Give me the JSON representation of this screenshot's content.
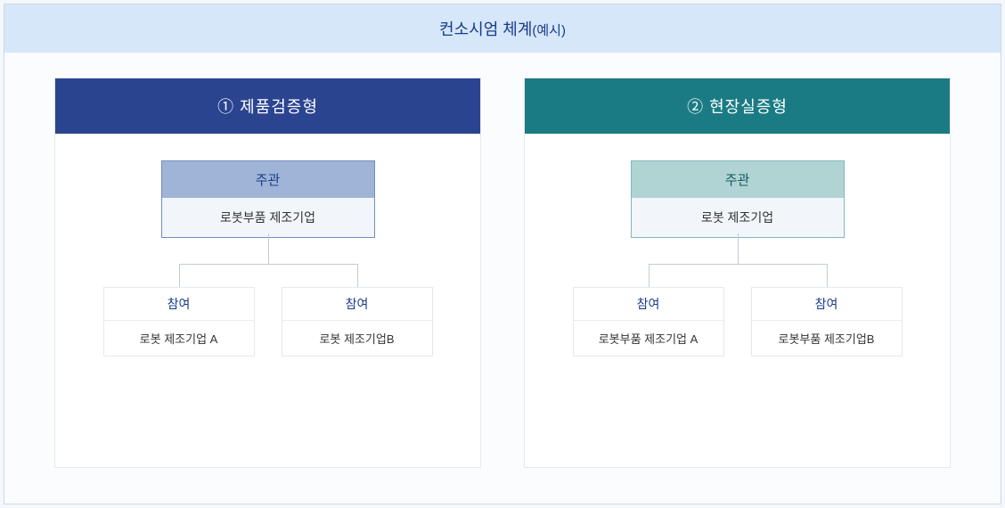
{
  "title_main": "컨소시엄 체계",
  "title_paren": "(예시)",
  "colors": {
    "title_bg": "#d5e7f9",
    "title_text": "#1a3b8a",
    "frame_bg": "#fbfcfd",
    "frame_border": "#cfd8e3",
    "panel_bg": "#ffffff",
    "panel_border": "#e3e9f0",
    "connector": "#c3cbd6",
    "child_head_text": "#1a3b8a",
    "main_desc_bg": "#f2f6fb"
  },
  "panels": [
    {
      "id": "product",
      "header": "① 제품검증형",
      "header_bg": "#2a4490",
      "main_head": "주관",
      "main_head_bg": "#9fb4d6",
      "main_head_text": "#1a3b8a",
      "main_border": "#6f8cc0",
      "main_desc": "로봇부품 제조기업",
      "children": [
        {
          "head": "참여",
          "desc": "로봇 제조기업 A"
        },
        {
          "head": "참여",
          "desc": "로봇 제조기업B"
        }
      ]
    },
    {
      "id": "field",
      "header": "② 현장실증형",
      "header_bg": "#1b7b85",
      "main_head": "주관",
      "main_head_bg": "#b0d3d4",
      "main_head_text": "#0f5a60",
      "main_border": "#7fb8ba",
      "main_desc": "로봇 제조기업",
      "children": [
        {
          "head": "참여",
          "desc": "로봇부품 제조기업 A"
        },
        {
          "head": "참여",
          "desc": "로봇부품 제조기업B"
        }
      ]
    }
  ]
}
